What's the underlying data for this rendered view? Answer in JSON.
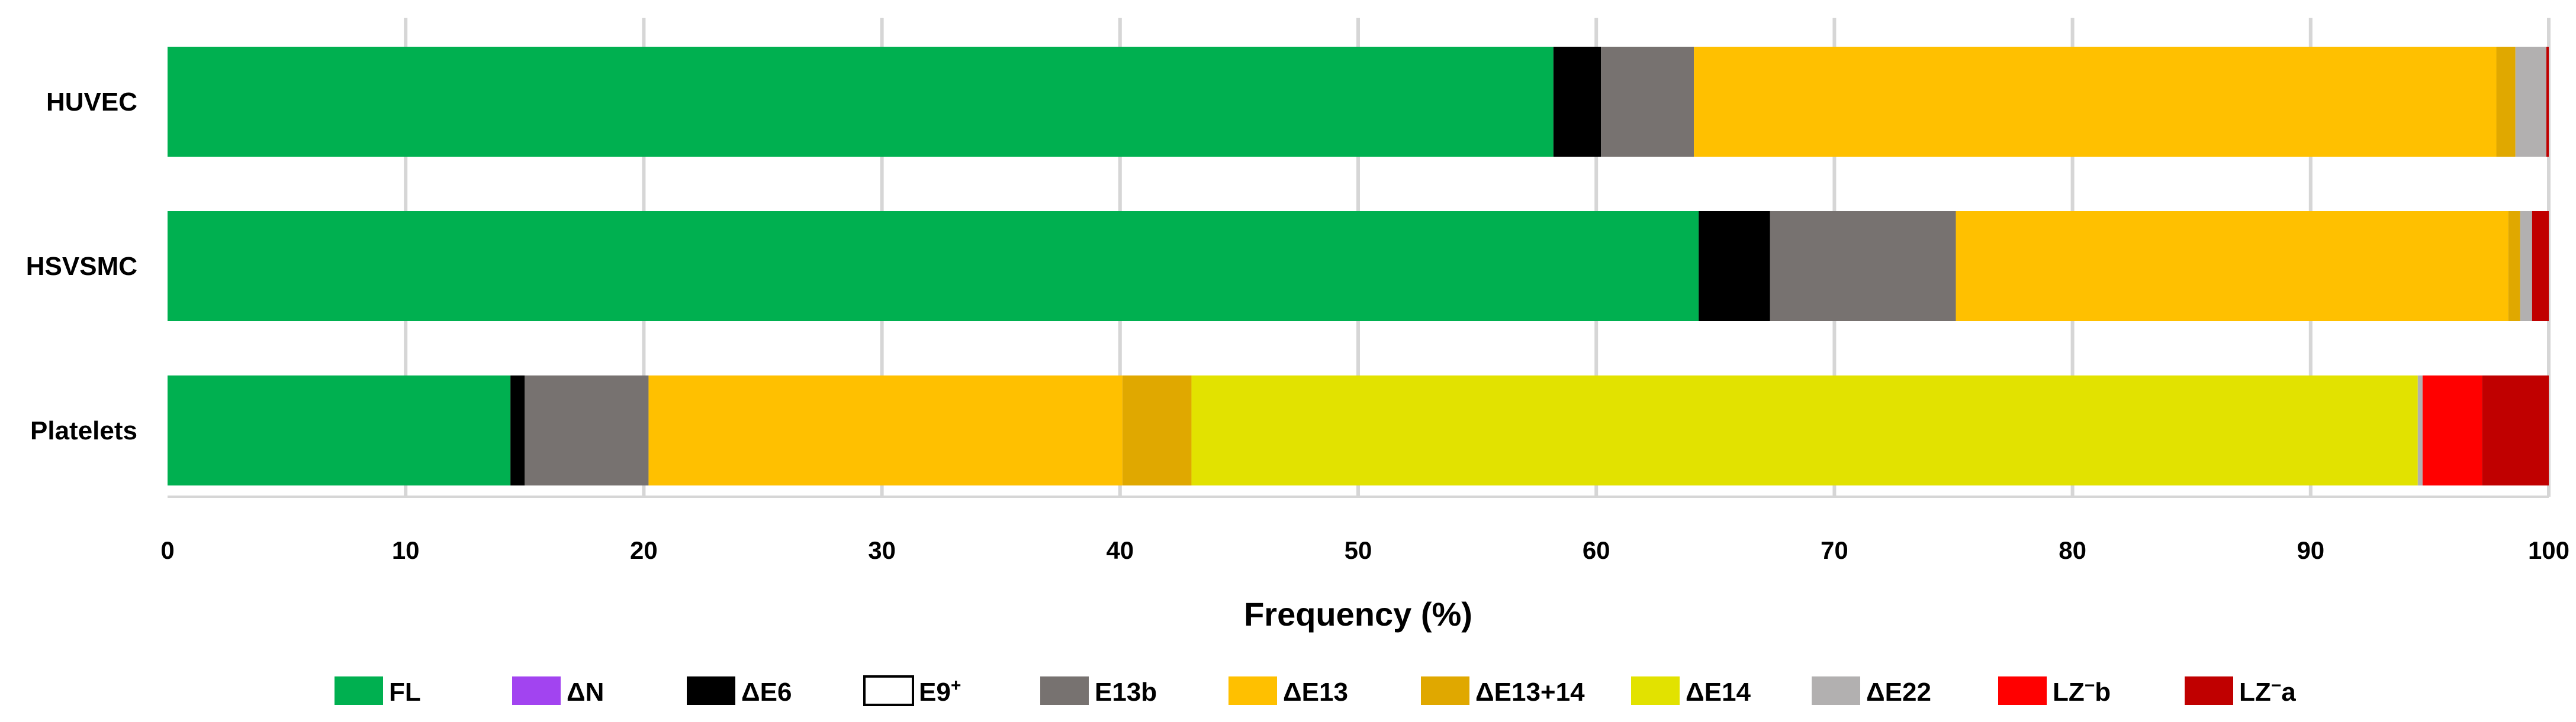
{
  "chart_data": {
    "type": "bar",
    "orientation": "horizontal",
    "stacked": true,
    "categories": [
      "HUVEC",
      "HSVSMC",
      "Platelets"
    ],
    "xlabel": "Frequency (%)",
    "ylabel": "",
    "xlim": [
      0,
      100
    ],
    "xticks": [
      "0",
      "10",
      "20",
      "30",
      "40",
      "50",
      "60",
      "70",
      "80",
      "90",
      "100"
    ],
    "grid": "vertical",
    "legend_position": "bottom",
    "series": [
      {
        "name": "FL",
        "color": "#00b050",
        "values": [
          58.2,
          64.3,
          14.4
        ]
      },
      {
        "name": "ΔN",
        "color": "#a244f0",
        "values": [
          0.0,
          0.0,
          0.0
        ]
      },
      {
        "name": "ΔE6",
        "color": "#000000",
        "values": [
          2.0,
          3.0,
          0.6
        ]
      },
      {
        "name": "E9+",
        "color": "#ffffff",
        "values": [
          0.0,
          0.0,
          0.0
        ]
      },
      {
        "name": "E13b",
        "color": "#777270",
        "values": [
          3.9,
          7.8,
          5.2
        ]
      },
      {
        "name": "ΔE13",
        "color": "#ffc000",
        "values": [
          33.7,
          23.2,
          19.9
        ]
      },
      {
        "name": "ΔE13+14",
        "color": "#e0a800",
        "values": [
          0.8,
          0.5,
          2.9
        ]
      },
      {
        "name": "ΔE14",
        "color": "#e2e200",
        "values": [
          0.0,
          0.0,
          51.5
        ]
      },
      {
        "name": "ΔE22",
        "color": "#b2b0b0",
        "values": [
          1.3,
          0.5,
          0.2
        ]
      },
      {
        "name": "LZ−b",
        "color": "#ff0000",
        "values": [
          0.0,
          0.0,
          2.5
        ]
      },
      {
        "name": "LZ−a",
        "color": "#c00000",
        "values": [
          0.1,
          0.7,
          2.8
        ]
      }
    ],
    "legend": [
      {
        "label": "FL",
        "color": "#00b050",
        "base": "FL",
        "sup": "",
        "tail": ""
      },
      {
        "label": "ΔN",
        "color": "#a244f0",
        "base": "ΔN",
        "sup": "",
        "tail": ""
      },
      {
        "label": "ΔE6",
        "color": "#000000",
        "base": "ΔE6",
        "sup": "",
        "tail": ""
      },
      {
        "label": "E9+",
        "color": "#ffffff",
        "base": "E9",
        "sup": "+",
        "tail": ""
      },
      {
        "label": "E13b",
        "color": "#777270",
        "base": "E13b",
        "sup": "",
        "tail": ""
      },
      {
        "label": "ΔE13",
        "color": "#ffc000",
        "base": "ΔE13",
        "sup": "",
        "tail": ""
      },
      {
        "label": "ΔE13+14",
        "color": "#e0a800",
        "base": "ΔE13+14",
        "sup": "",
        "tail": ""
      },
      {
        "label": "ΔE14",
        "color": "#e2e200",
        "base": "ΔE14",
        "sup": "",
        "tail": ""
      },
      {
        "label": "ΔE22",
        "color": "#b2b0b0",
        "base": "ΔE22",
        "sup": "",
        "tail": ""
      },
      {
        "label": "LZ−b",
        "color": "#ff0000",
        "base": "LZ",
        "sup": "−",
        "tail": "b"
      },
      {
        "label": "LZ−a",
        "color": "#c00000",
        "base": "LZ",
        "sup": "−",
        "tail": "a"
      }
    ]
  }
}
